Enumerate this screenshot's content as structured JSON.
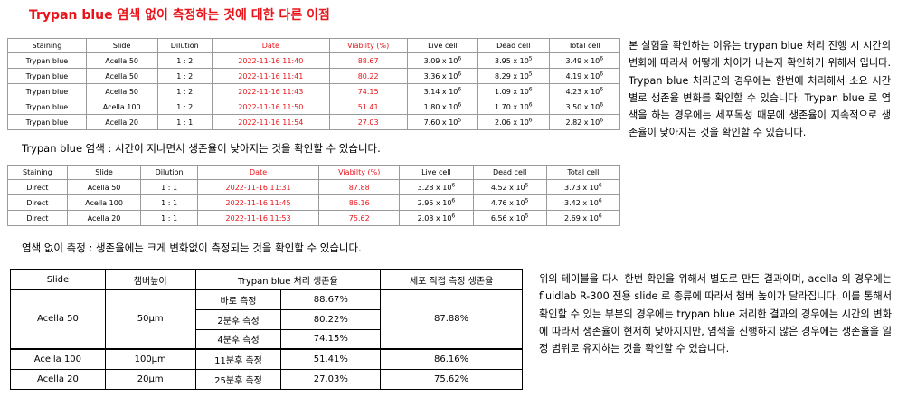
{
  "title": "Trypan blue 염색 없이 측정하는 것에 대한 다른 이점",
  "table1": {
    "headers": [
      "Staining",
      "Slide",
      "Dilution",
      "Date",
      "Viabilty (%)",
      "Live cell",
      "Dead cell",
      "Total cell"
    ],
    "rows": [
      [
        "Trypan blue",
        "Acella 50",
        "1 : 2",
        "2022-11-16 11:40",
        "88.67",
        "3.09 x 10",
        "6",
        "3.95 x 10",
        "5",
        "3.49 x 10",
        "6"
      ],
      [
        "Trypan blue",
        "Acella 50",
        "1 : 2",
        "2022-11-16 11:41",
        "80.22",
        "3.36 x 10",
        "6",
        "8.29 x 10",
        "5",
        "4.19 x 10",
        "6"
      ],
      [
        "Trypan blue",
        "Acella 50",
        "1 : 2",
        "2022-11-16 11:43",
        "74.15",
        "3.14 x 10",
        "6",
        "1.09 x 10",
        "6",
        "4.23 x 10",
        "6"
      ],
      [
        "Trypan blue",
        "Acella 100",
        "1 : 2",
        "2022-11-16 11:50",
        "51.41",
        "1.80 x 10",
        "6",
        "1.70 x 10",
        "6",
        "3.50 x 10",
        "6"
      ],
      [
        "Trypan blue",
        "Acella 20",
        "1 : 1",
        "2022-11-16 11:54",
        "27.03",
        "7.60 x 10",
        "5",
        "2.06 x 10",
        "6",
        "2.82 x 10",
        "6"
      ]
    ]
  },
  "caption1": "Trypan blue 염색 : 시간이 지나면서 생존율이 낮아지는 것을 확인할 수 있습니다.",
  "table2": {
    "headers": [
      "Staining",
      "Slide",
      "Dilution",
      "Date",
      "Viabilty (%)",
      "Live cell",
      "Dead cell",
      "Total cell"
    ],
    "rows": [
      [
        "Direct",
        "Acella 50",
        "1 : 1",
        "2022-11-16 11:31",
        "87.88",
        "3.28 x 10",
        "6",
        "4.52 x 10",
        "5",
        "3.73 x 10",
        "6"
      ],
      [
        "Direct",
        "Acella 100",
        "1 : 1",
        "2022-11-16 11:45",
        "86.16",
        "2.95 x 10",
        "6",
        "4.76 x 10",
        "5",
        "3.42 x 10",
        "6"
      ],
      [
        "Direct",
        "Acella 20",
        "1 : 1",
        "2022-11-16 11:53",
        "75.62",
        "2.03 x 10",
        "6",
        "6.56 x 10",
        "5",
        "2.69 x 10",
        "6"
      ]
    ]
  },
  "caption2": "염색 없이 측정 : 생존율에는 크게 변화없이 측정되는 것을 확인할 수 있습니다.",
  "table3": {
    "headers": [
      "Slide",
      "챔버높이",
      "Trypan blue 처리 생존율",
      "세포 직접 측정 생존율"
    ],
    "acella50": {
      "slide": "Acella 50",
      "height": "50μm",
      "sub": [
        [
          "바로 측정",
          "88.67%"
        ],
        [
          "2분후 측정",
          "80.22%"
        ],
        [
          "4분후 측정",
          "74.15%"
        ]
      ],
      "direct": "87.88%"
    },
    "acella100": {
      "slide": "Acella 100",
      "height": "100μm",
      "timing": "11분후 측정",
      "trypan": "51.41%",
      "direct": "86.16%"
    },
    "acella20": {
      "slide": "Acella 20",
      "height": "20μm",
      "timing": "25분후 측정",
      "trypan": "27.03%",
      "direct": "75.62%"
    }
  },
  "para1": "본 실험을 확인하는 이유는 trypan blue 처리 진행 시 시간의 변화에 따라서 어떻게 차이가 나는지 확인하기 위해서 입니다. Trypan blue 처리군의 경우에는 한번에 처리해서 소요 시간 별로 생존율 변화를 확인할 수 있습니다. Trypan blue 로 염색을 하는 경우에는 세포독성 때문에 생존율이 지속적으로 생존율이 낮아지는 것을 확인할 수 있습니다.",
  "para2": "위의 테이블을 다시 한번 확인을 위해서 별도로 만든 결과이며, acella 의 경우에는 fluidlab R-300 전용 slide 로 종류에 따라서 챔버 높이가 달라집니다. 이를 통해서 확인할 수 있는 부분의 경우에는 trypan blue 처리한 결과의 경우에는 시간의 변화에 따라서 생존율이 현저히 낮아지지만, 염색을 진행하지 않은 경우에는 생존율을 일정 범위로 유지하는 것을 확인할 수 있습니다.",
  "colors": {
    "accent": "#e8141a",
    "border": "#9a9a9a"
  }
}
